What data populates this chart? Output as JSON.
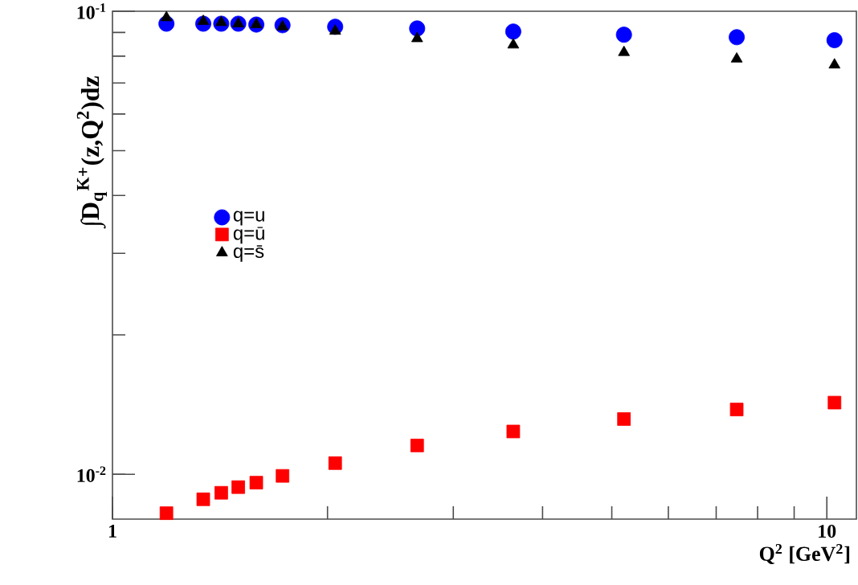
{
  "chart_data": {
    "type": "scatter",
    "xlabel": "Q$^{2}$ [GeV$^{2}$]",
    "ylabel": "∫D$_{q}$$^{K+}$(z,Q$^{2}$)dz",
    "x": [
      1.19,
      1.34,
      1.42,
      1.5,
      1.59,
      1.73,
      2.05,
      2.67,
      3.64,
      5.2,
      7.48,
      10.25
    ],
    "series": [
      {
        "name": "q=u",
        "color": "#0000ff",
        "marker": "circle",
        "values": [
          0.094,
          0.094,
          0.094,
          0.094,
          0.0936,
          0.0933,
          0.0926,
          0.0918,
          0.0904,
          0.089,
          0.0879,
          0.0866
        ]
      },
      {
        "name": "q=ū",
        "color": "#ff0000",
        "marker": "square",
        "values": [
          0.00824,
          0.00883,
          0.00912,
          0.00938,
          0.00959,
          0.00992,
          0.01057,
          0.01154,
          0.01237,
          0.01316,
          0.0138,
          0.01428
        ]
      },
      {
        "name": "q=s̄",
        "color": "#000000",
        "marker": "triangle",
        "values": [
          0.0969,
          0.0951,
          0.0946,
          0.094,
          0.0936,
          0.0926,
          0.0906,
          0.0873,
          0.0846,
          0.0815,
          0.0789,
          0.0766
        ]
      }
    ],
    "log": "xy",
    "xlim": [
      1,
      11
    ],
    "ylim": [
      0.008,
      0.1
    ],
    "xticks": [
      1,
      10
    ],
    "yticks": [
      {
        "value": 0.01,
        "label": "10$^{-2}$"
      },
      {
        "value": 0.1,
        "label": "10$^{-1}$"
      }
    ],
    "legend": "left",
    "grid": false
  }
}
